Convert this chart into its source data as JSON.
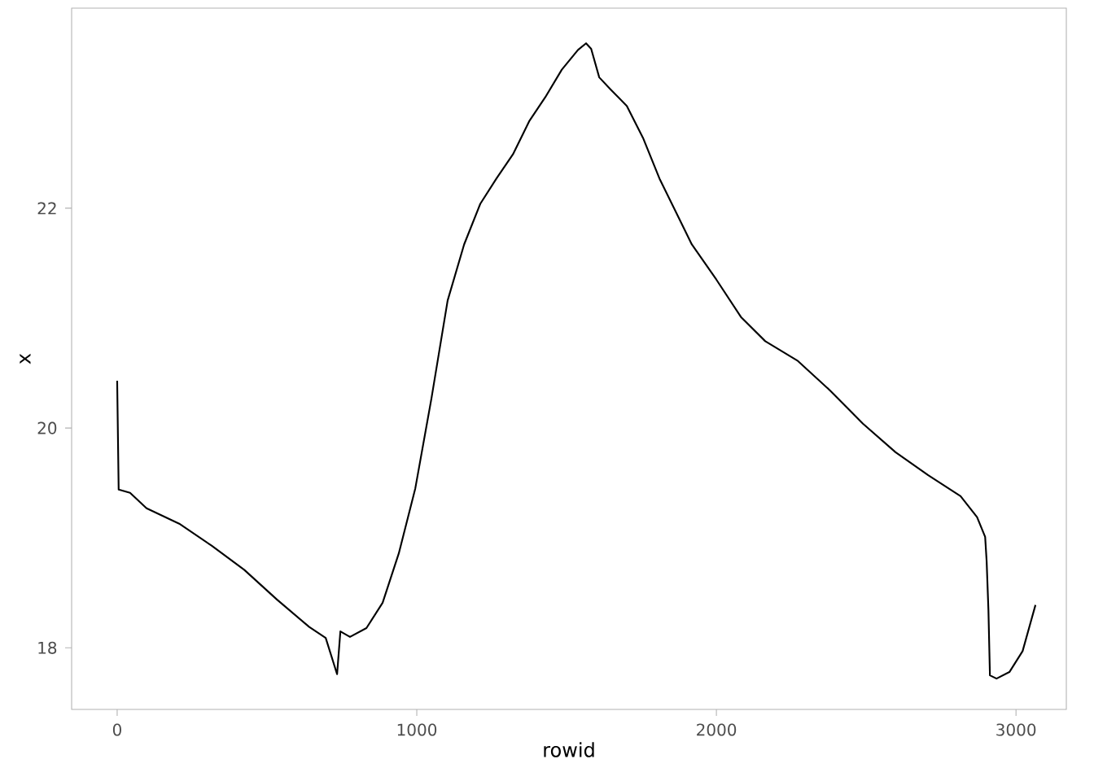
{
  "chart_data": {
    "type": "line",
    "xlabel": "rowid",
    "ylabel": "x",
    "x": [
      0,
      5,
      43,
      98,
      207,
      315,
      424,
      533,
      641,
      696,
      734,
      745,
      777,
      832,
      886,
      940,
      995,
      1049,
      1103,
      1158,
      1212,
      1266,
      1321,
      1375,
      1429,
      1484,
      1538,
      1565,
      1582,
      1609,
      1647,
      1701,
      1755,
      1810,
      1864,
      1918,
      2000,
      2082,
      2163,
      2272,
      2380,
      2489,
      2598,
      2707,
      2815,
      2870,
      2897,
      2902,
      2908,
      2913,
      2935,
      2978,
      3022,
      3065
    ],
    "values": [
      20.43,
      19.44,
      19.41,
      19.27,
      19.13,
      18.93,
      18.71,
      18.44,
      18.19,
      18.09,
      17.76,
      18.15,
      18.1,
      18.18,
      18.41,
      18.86,
      19.45,
      20.27,
      21.16,
      21.67,
      22.04,
      22.27,
      22.49,
      22.79,
      23.01,
      23.26,
      23.44,
      23.5,
      23.45,
      23.19,
      23.08,
      22.93,
      22.64,
      22.27,
      21.97,
      21.67,
      21.35,
      21.01,
      20.79,
      20.61,
      20.34,
      20.04,
      19.78,
      19.57,
      19.38,
      19.19,
      19.01,
      18.79,
      18.34,
      17.75,
      17.72,
      17.78,
      17.97,
      18.39
    ],
    "color": "#000000",
    "xlim": [
      -152,
      3168
    ],
    "ylim": [
      17.44,
      23.82
    ],
    "xticks": [
      0,
      1000,
      2000,
      3000
    ],
    "yticks": [
      18,
      20,
      22
    ],
    "grid": false
  }
}
